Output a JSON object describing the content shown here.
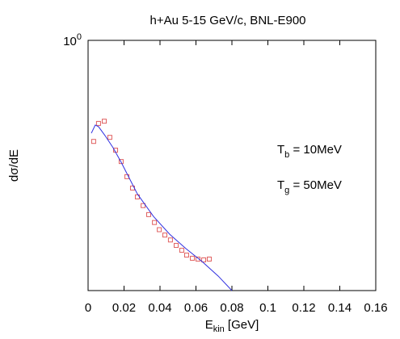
{
  "chart_data": {
    "type": "line",
    "title": "h+Au 5-15 GeV/c, BNL-E900",
    "x_label": {
      "text": "E",
      "sub": "kin",
      "rest": " [GeV]"
    },
    "y_label": "dσ/dE",
    "annotations": [
      {
        "text": "T",
        "sub": "b",
        "rest": " = 10MeV"
      },
      {
        "text": "T",
        "sub": "g",
        "rest": " = 50MeV"
      }
    ],
    "xlim": [
      0,
      0.16
    ],
    "xticks": [
      0,
      0.02,
      0.04,
      0.06,
      0.08,
      0.1,
      0.12,
      0.14,
      0.16
    ],
    "ylim": [
      0.06,
      1
    ],
    "y_log": true,
    "yticks": [
      {
        "value": 1,
        "label": "10",
        "exponent": "0"
      }
    ],
    "series": [
      {
        "mode": "markers",
        "color": "#e06060",
        "x": [
          0.0031,
          0.0058,
          0.009,
          0.0121,
          0.0153,
          0.0184,
          0.0216,
          0.0247,
          0.0274,
          0.0306,
          0.0337,
          0.0369,
          0.0396,
          0.0427,
          0.0458,
          0.049,
          0.0521,
          0.0548,
          0.058,
          0.0611,
          0.0643,
          0.0674
        ],
        "values": [
          0.321,
          0.393,
          0.403,
          0.336,
          0.291,
          0.256,
          0.216,
          0.19,
          0.172,
          0.156,
          0.141,
          0.129,
          0.119,
          0.112,
          0.106,
          0.0997,
          0.0944,
          0.0894,
          0.0863,
          0.0855,
          0.0847,
          0.0855
        ]
      },
      {
        "mode": "line",
        "color": "#3030e0",
        "x": [
          0.0018,
          0.004,
          0.0058,
          0.0094,
          0.0139,
          0.0184,
          0.0274,
          0.0364,
          0.0454,
          0.0544,
          0.0634,
          0.0724,
          0.08
        ],
        "values": [
          0.352,
          0.386,
          0.379,
          0.343,
          0.299,
          0.254,
          0.178,
          0.138,
          0.113,
          0.0962,
          0.0832,
          0.0706,
          0.06
        ]
      }
    ]
  }
}
